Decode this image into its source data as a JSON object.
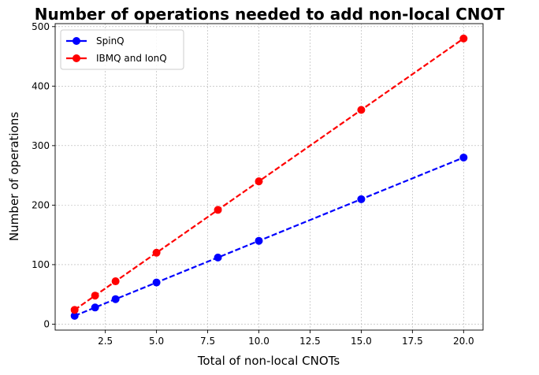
{
  "chart_data": {
    "type": "line",
    "title": "Number of operations needed to add non-local CNOT",
    "xlabel": "Total of non-local CNOTs",
    "ylabel": "Number of operations",
    "xlim": [
      0.05,
      20.95
    ],
    "ylim": [
      -10,
      505
    ],
    "x_ticks": [
      2.5,
      5.0,
      7.5,
      10.0,
      12.5,
      15.0,
      17.5,
      20.0
    ],
    "x_tick_labels": [
      "2.5",
      "5.0",
      "7.5",
      "10.0",
      "12.5",
      "15.0",
      "17.5",
      "20.0"
    ],
    "y_ticks": [
      0,
      100,
      200,
      300,
      400,
      500
    ],
    "y_tick_labels": [
      "0",
      "100",
      "200",
      "300",
      "400",
      "500"
    ],
    "grid": true,
    "legend_position": "top-left",
    "series": [
      {
        "name": "SpinQ",
        "color": "#0000ff",
        "marker": "circle",
        "line_style": "dashed",
        "x": [
          1,
          2,
          3,
          5,
          8,
          10,
          15,
          20
        ],
        "y": [
          14,
          28,
          42,
          70,
          112,
          140,
          210,
          280
        ]
      },
      {
        "name": "IBMQ and IonQ",
        "color": "#ff0000",
        "marker": "circle",
        "line_style": "dashed",
        "x": [
          1,
          2,
          3,
          5,
          8,
          10,
          15,
          20
        ],
        "y": [
          24,
          48,
          72,
          120,
          192,
          240,
          360,
          480
        ]
      }
    ]
  }
}
